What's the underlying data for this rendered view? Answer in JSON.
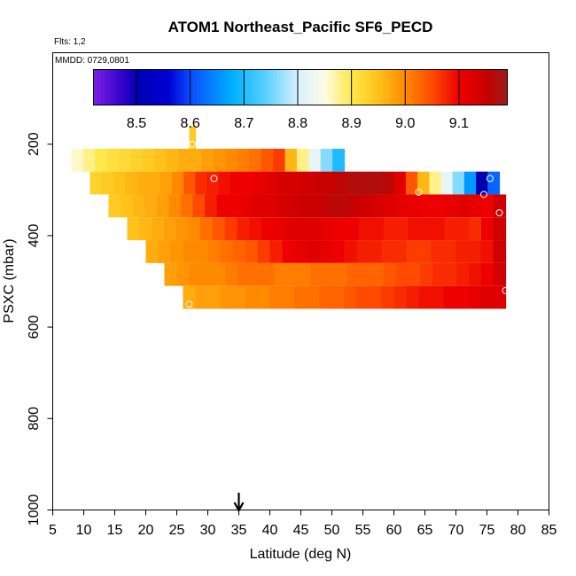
{
  "chart_data": {
    "type": "heatmap",
    "title": "ATOM1 Northeast_Pacific SF6_PECD",
    "flights_label": "Flts: 1,2",
    "date_label": "MMDD: 0729,0801",
    "xlabel": "Latitude (deg N)",
    "ylabel": "PSXC (mbar)",
    "xlim": [
      5,
      85
    ],
    "ylim": [
      1000,
      0
    ],
    "x_ticks": [
      "5",
      "10",
      "15",
      "20",
      "25",
      "30",
      "35",
      "40",
      "45",
      "50",
      "55",
      "60",
      "65",
      "70",
      "75",
      "80",
      "85"
    ],
    "y_ticks": [
      "200",
      "400",
      "600",
      "800",
      "1000"
    ],
    "marker": {
      "latitude": 35,
      "symbol": "down-arrow"
    },
    "colorbar": {
      "min": 8.42,
      "max": 9.19,
      "tick_values": [
        8.5,
        8.6,
        8.7,
        8.8,
        8.9,
        9.0,
        9.1
      ],
      "tick_labels": [
        "8.5",
        "8.6",
        "8.7",
        "8.8",
        "8.9",
        "9.0",
        "9.1"
      ],
      "stops": [
        {
          "v": 8.42,
          "c": "#7a1fe6"
        },
        {
          "v": 8.48,
          "c": "#2a00c8"
        },
        {
          "v": 8.5,
          "c": "#0000b0"
        },
        {
          "v": 8.56,
          "c": "#0000d4"
        },
        {
          "v": 8.6,
          "c": "#0a4cff"
        },
        {
          "v": 8.68,
          "c": "#00b2ff"
        },
        {
          "v": 8.74,
          "c": "#5ad0ff"
        },
        {
          "v": 8.8,
          "c": "#d8f0ff"
        },
        {
          "v": 8.85,
          "c": "#fffce6"
        },
        {
          "v": 8.9,
          "c": "#ffe84a"
        },
        {
          "v": 8.95,
          "c": "#ffc21a"
        },
        {
          "v": 9.0,
          "c": "#ff8a00"
        },
        {
          "v": 9.05,
          "c": "#ff4a00"
        },
        {
          "v": 9.1,
          "c": "#ee0000"
        },
        {
          "v": 9.15,
          "c": "#c80000"
        },
        {
          "v": 9.19,
          "c": "#9a1a1a"
        }
      ]
    },
    "layers": [
      {
        "p_top": 160,
        "p_bot": 210,
        "lat_start": 27,
        "lat_end": 28,
        "values": [
          8.94
        ]
      },
      {
        "p_top": 210,
        "p_bot": 260,
        "lat_start": 8,
        "lat_end": 52,
        "values": [
          8.86,
          8.88,
          8.9,
          8.91,
          8.92,
          8.93,
          8.94,
          8.95,
          8.96,
          8.97,
          8.97,
          8.98,
          8.99,
          9.0,
          9.01,
          9.02,
          9.04,
          9.06,
          8.96,
          8.88,
          8.82,
          8.76,
          8.7
        ]
      },
      {
        "p_top": 260,
        "p_bot": 310,
        "lat_start": 11,
        "lat_end": 77,
        "values": [
          8.93,
          8.94,
          8.95,
          8.96,
          8.97,
          8.97,
          8.98,
          9.0,
          9.04,
          9.07,
          9.08,
          9.09,
          9.1,
          9.1,
          9.11,
          9.12,
          9.13,
          9.13,
          9.14,
          9.15,
          9.15,
          9.16,
          9.17,
          9.17,
          9.17,
          9.16,
          9.12,
          9.04,
          8.96,
          8.88,
          8.82,
          8.76,
          8.66,
          8.5,
          8.62
        ]
      },
      {
        "p_top": 310,
        "p_bot": 360,
        "lat_start": 14,
        "lat_end": 78,
        "values": [
          8.94,
          8.95,
          8.96,
          8.97,
          8.98,
          9.0,
          9.02,
          9.05,
          9.08,
          9.1,
          9.1,
          9.11,
          9.12,
          9.12,
          9.13,
          9.14,
          9.15,
          9.15,
          9.16,
          9.16,
          9.15,
          9.14,
          9.13,
          9.12,
          9.11,
          9.11,
          9.1,
          9.1,
          9.11,
          9.12,
          9.11,
          9.1,
          9.14
        ]
      },
      {
        "p_top": 360,
        "p_bot": 410,
        "lat_start": 17,
        "lat_end": 78,
        "values": [
          8.95,
          8.96,
          8.97,
          8.98,
          8.99,
          9.0,
          9.02,
          9.04,
          9.06,
          9.08,
          9.09,
          9.1,
          9.11,
          9.12,
          9.12,
          9.12,
          9.11,
          9.1,
          9.1,
          9.09,
          9.09,
          9.08,
          9.08,
          9.09,
          9.09,
          9.09,
          9.08,
          9.08,
          9.07,
          9.1,
          9.14
        ]
      },
      {
        "p_top": 410,
        "p_bot": 460,
        "lat_start": 20,
        "lat_end": 78,
        "values": [
          8.97,
          8.98,
          8.99,
          9.0,
          9.0,
          9.01,
          9.02,
          9.03,
          9.04,
          9.06,
          9.08,
          9.1,
          9.11,
          9.12,
          9.11,
          9.1,
          9.09,
          9.08,
          9.08,
          9.07,
          9.07,
          9.06,
          9.06,
          9.07,
          9.07,
          9.08,
          9.08,
          9.09,
          9.14
        ]
      },
      {
        "p_top": 460,
        "p_bot": 510,
        "lat_start": 23,
        "lat_end": 78,
        "values": [
          8.98,
          8.99,
          9.0,
          9.0,
          9.0,
          9.01,
          9.02,
          9.02,
          9.02,
          9.01,
          9.01,
          9.01,
          9.02,
          9.02,
          9.02,
          9.03,
          9.03,
          9.03,
          9.04,
          9.05,
          9.05,
          9.06,
          9.07,
          9.07,
          9.08,
          9.09,
          9.1,
          9.14
        ]
      },
      {
        "p_top": 510,
        "p_bot": 560,
        "lat_start": 26,
        "lat_end": 78,
        "values": [
          8.97,
          8.98,
          8.98,
          8.99,
          8.99,
          9.0,
          9.0,
          9.01,
          9.01,
          9.02,
          9.02,
          9.03,
          9.03,
          9.04,
          9.05,
          9.05,
          9.06,
          9.07,
          9.08,
          9.09,
          9.09,
          9.1,
          9.1,
          9.11,
          9.12,
          9.12
        ]
      }
    ],
    "sample_points": [
      {
        "lat": 27.5,
        "p": 200
      },
      {
        "lat": 31,
        "p": 275
      },
      {
        "lat": 64,
        "p": 305
      },
      {
        "lat": 74.5,
        "p": 310
      },
      {
        "lat": 75.5,
        "p": 275
      },
      {
        "lat": 77,
        "p": 350
      },
      {
        "lat": 78,
        "p": 520
      },
      {
        "lat": 27,
        "p": 550
      }
    ]
  }
}
